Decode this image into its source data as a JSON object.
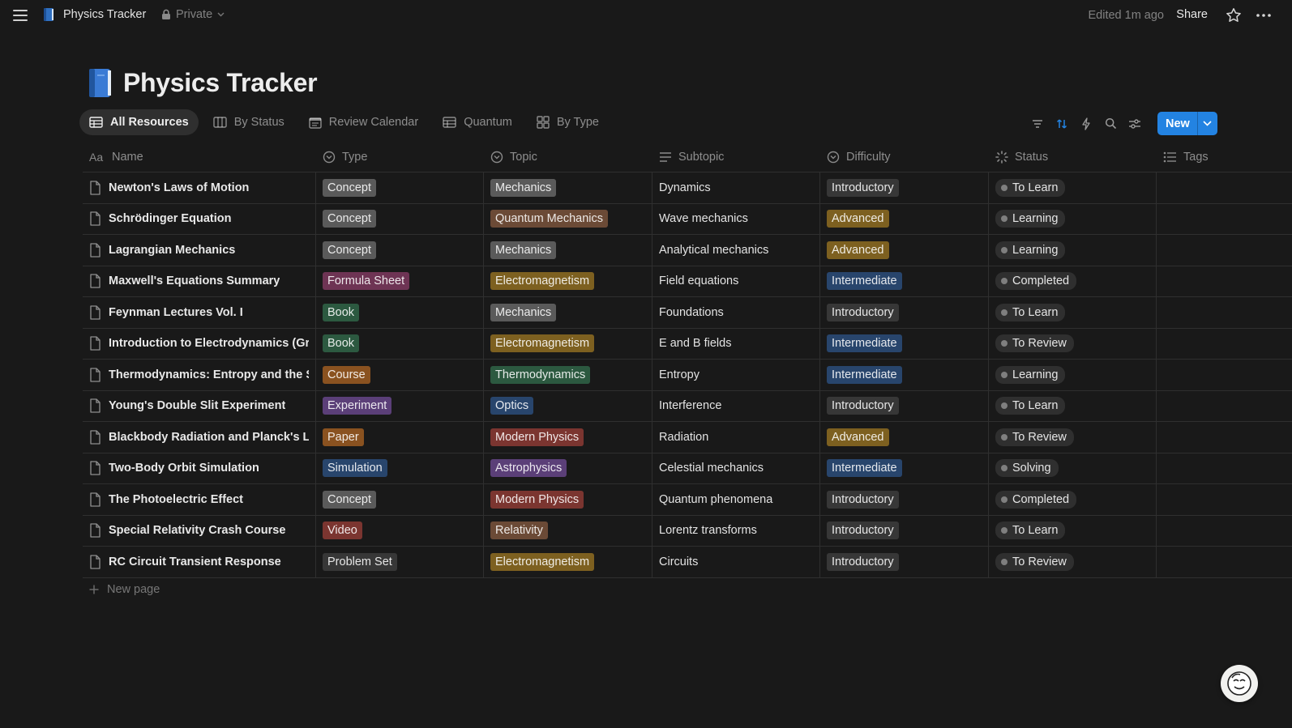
{
  "topbar": {
    "title": "Physics Tracker",
    "privacy": "Private",
    "edited": "Edited 1m ago",
    "share": "Share"
  },
  "page": {
    "icon": "blue-book-icon",
    "title": "Physics Tracker"
  },
  "tabs": [
    {
      "label": "All Resources",
      "icon": "table-icon",
      "active": true
    },
    {
      "label": "By Status",
      "icon": "board-icon",
      "active": false
    },
    {
      "label": "Review Calendar",
      "icon": "calendar-icon",
      "active": false
    },
    {
      "label": "Quantum",
      "icon": "table-icon",
      "active": false
    },
    {
      "label": "By Type",
      "icon": "gallery-icon",
      "active": false
    }
  ],
  "toolbar": {
    "new_label": "New",
    "accent": "#2383e2"
  },
  "columns": [
    {
      "label": "Name",
      "icon": "text-aa-icon"
    },
    {
      "label": "Type",
      "icon": "select-icon"
    },
    {
      "label": "Topic",
      "icon": "select-icon"
    },
    {
      "label": "Subtopic",
      "icon": "text-lines-icon"
    },
    {
      "label": "Difficulty",
      "icon": "select-icon"
    },
    {
      "label": "Status",
      "icon": "status-spinner-icon"
    },
    {
      "label": "Tags",
      "icon": "multi-select-icon"
    }
  ],
  "tag_colors": {
    "gray": "#5a5a5a",
    "brown": "#6b4a36",
    "orange": "#8a5220",
    "yellow": "#7d6020",
    "green": "#2c5940",
    "blue": "#28456c",
    "purple": "#5b3f78",
    "pink": "#6e3454",
    "red": "#7b3530",
    "default": "#373737"
  },
  "rows": [
    {
      "name": "Newton's Laws of Motion",
      "type": {
        "label": "Concept",
        "color": "gray"
      },
      "topic": {
        "label": "Mechanics",
        "color": "gray"
      },
      "subtopic": "Dynamics",
      "difficulty": {
        "label": "Introductory",
        "color": "default"
      },
      "status": "To Learn"
    },
    {
      "name": "Schrödinger Equation",
      "type": {
        "label": "Concept",
        "color": "gray"
      },
      "topic": {
        "label": "Quantum Mechanics",
        "color": "brown"
      },
      "subtopic": "Wave mechanics",
      "difficulty": {
        "label": "Advanced",
        "color": "yellow"
      },
      "status": "Learning"
    },
    {
      "name": "Lagrangian Mechanics",
      "type": {
        "label": "Concept",
        "color": "gray"
      },
      "topic": {
        "label": "Mechanics",
        "color": "gray"
      },
      "subtopic": "Analytical mechanics",
      "difficulty": {
        "label": "Advanced",
        "color": "yellow"
      },
      "status": "Learning"
    },
    {
      "name": "Maxwell's Equations Summary",
      "type": {
        "label": "Formula Sheet",
        "color": "pink"
      },
      "topic": {
        "label": "Electromagnetism",
        "color": "yellow"
      },
      "subtopic": "Field equations",
      "difficulty": {
        "label": "Intermediate",
        "color": "blue"
      },
      "status": "Completed"
    },
    {
      "name": "Feynman Lectures Vol. I",
      "type": {
        "label": "Book",
        "color": "green"
      },
      "topic": {
        "label": "Mechanics",
        "color": "gray"
      },
      "subtopic": "Foundations",
      "difficulty": {
        "label": "Introductory",
        "color": "default"
      },
      "status": "To Learn"
    },
    {
      "name": "Introduction to Electrodynamics (Griffiths)",
      "type": {
        "label": "Book",
        "color": "green"
      },
      "topic": {
        "label": "Electromagnetism",
        "color": "yellow"
      },
      "subtopic": "E and B fields",
      "difficulty": {
        "label": "Intermediate",
        "color": "blue"
      },
      "status": "To Review"
    },
    {
      "name": "Thermodynamics: Entropy and the Second Law",
      "type": {
        "label": "Course",
        "color": "orange"
      },
      "topic": {
        "label": "Thermodynamics",
        "color": "green"
      },
      "subtopic": "Entropy",
      "difficulty": {
        "label": "Intermediate",
        "color": "blue"
      },
      "status": "Learning"
    },
    {
      "name": "Young's Double Slit Experiment",
      "type": {
        "label": "Experiment",
        "color": "purple"
      },
      "topic": {
        "label": "Optics",
        "color": "blue"
      },
      "subtopic": "Interference",
      "difficulty": {
        "label": "Introductory",
        "color": "default"
      },
      "status": "To Learn"
    },
    {
      "name": "Blackbody Radiation and Planck's Law",
      "type": {
        "label": "Paper",
        "color": "orange"
      },
      "topic": {
        "label": "Modern Physics",
        "color": "red"
      },
      "subtopic": "Radiation",
      "difficulty": {
        "label": "Advanced",
        "color": "yellow"
      },
      "status": "To Review"
    },
    {
      "name": "Two-Body Orbit Simulation",
      "type": {
        "label": "Simulation",
        "color": "blue"
      },
      "topic": {
        "label": "Astrophysics",
        "color": "purple"
      },
      "subtopic": "Celestial mechanics",
      "difficulty": {
        "label": "Intermediate",
        "color": "blue"
      },
      "status": "Solving"
    },
    {
      "name": "The Photoelectric Effect",
      "type": {
        "label": "Concept",
        "color": "gray"
      },
      "topic": {
        "label": "Modern Physics",
        "color": "red"
      },
      "subtopic": "Quantum phenomena",
      "difficulty": {
        "label": "Introductory",
        "color": "default"
      },
      "status": "Completed"
    },
    {
      "name": "Special Relativity Crash Course",
      "type": {
        "label": "Video",
        "color": "red"
      },
      "topic": {
        "label": "Relativity",
        "color": "brown"
      },
      "subtopic": "Lorentz transforms",
      "difficulty": {
        "label": "Introductory",
        "color": "default"
      },
      "status": "To Learn"
    },
    {
      "name": "RC Circuit Transient Response",
      "type": {
        "label": "Problem Set",
        "color": "default"
      },
      "topic": {
        "label": "Electromagnetism",
        "color": "yellow"
      },
      "subtopic": "Circuits",
      "difficulty": {
        "label": "Introductory",
        "color": "default"
      },
      "status": "To Review"
    }
  ],
  "new_page": "New page"
}
